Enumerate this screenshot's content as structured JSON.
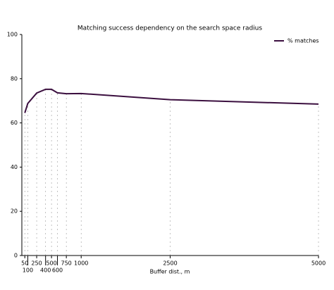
{
  "chart_data": {
    "type": "line",
    "title": "Matching success dependency on the search space radius",
    "x_label": "Buffer dist., m",
    "x": [
      50,
      100,
      250,
      400,
      500,
      600,
      750,
      1000,
      2500,
      5000
    ],
    "series": [
      {
        "name": "% matches",
        "color": "#3b0f3f",
        "values": [
          64.5,
          68.8,
          73.5,
          75.2,
          75.2,
          73.6,
          73.2,
          73.3,
          70.5,
          68.5
        ]
      }
    ],
    "xlim": [
      0,
      5000
    ],
    "ylim": [
      0,
      100
    ],
    "xticks": [
      50,
      100,
      250,
      400,
      500,
      600,
      750,
      1000,
      2500,
      5000
    ],
    "yticks": [
      0,
      20,
      40,
      60,
      80,
      100
    ],
    "grid": true,
    "legend": "upper right"
  }
}
